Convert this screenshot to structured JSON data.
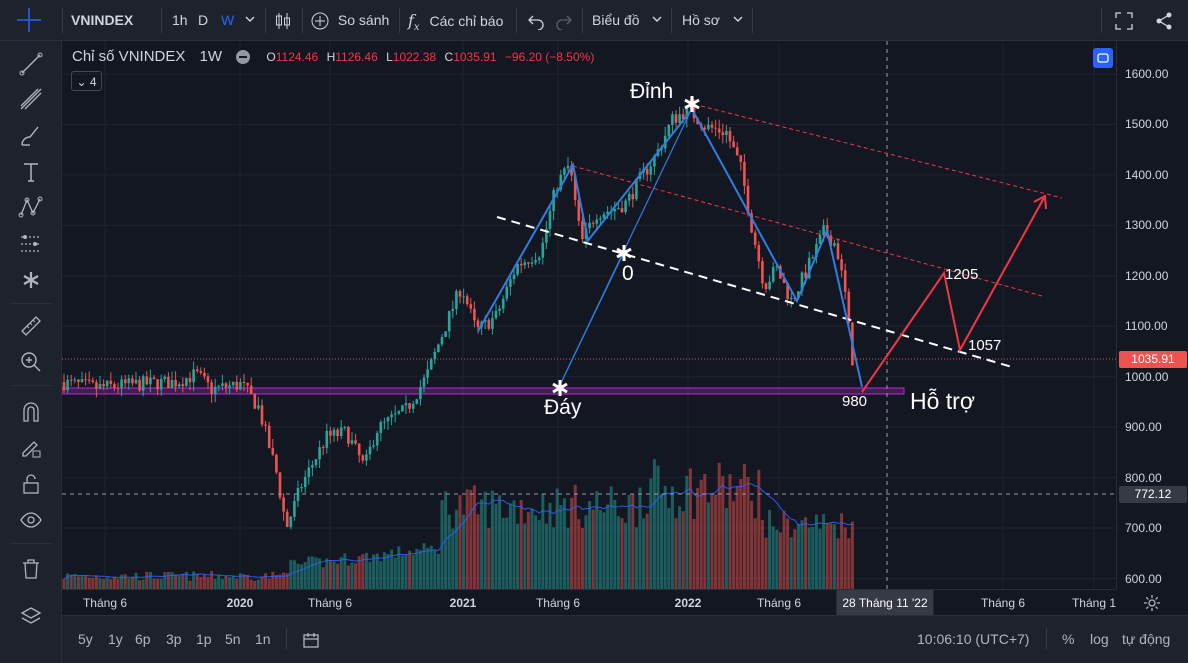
{
  "toolbar": {
    "symbol": "VNINDEX",
    "intervals": [
      "1h",
      "D",
      "W"
    ],
    "active_interval": "W",
    "compare_label": "So sánh",
    "indicators_label": "Các chỉ báo",
    "chart_type_label": "Biểu đồ",
    "profile_label": "Hồ sơ"
  },
  "legend": {
    "title": "Chỉ số VNINDEX",
    "interval": "1W",
    "open_label": "O",
    "open": "1124.46",
    "high_label": "H",
    "high": "1126.46",
    "low_label": "L",
    "low": "1022.38",
    "close_label": "C",
    "close": "1035.91",
    "change": "−96.20 (−8.50%)",
    "indicator_count": "4"
  },
  "annotations": {
    "peak": "Đỉnh",
    "bottom": "Đáy",
    "zero": "0",
    "support": "Hỗ trợ",
    "level_980": "980",
    "level_1057": "1057",
    "level_1205": "1205"
  },
  "price_axis": {
    "ticks": [
      "1600.00",
      "1500.00",
      "1400.00",
      "1300.00",
      "1200.00",
      "1100.00",
      "1000.00",
      "900.00",
      "800.00",
      "700.00",
      "600.00"
    ],
    "last_price_tag": "1035.91",
    "crosshair_price_tag": "772.12"
  },
  "time_axis": {
    "labels": [
      "Tháng 6",
      "2020",
      "Tháng 6",
      "2021",
      "Tháng 6",
      "2022",
      "Tháng 6",
      "Tháng 6",
      "Tháng 1"
    ],
    "crosshair_label": "28 Tháng 11 '22"
  },
  "bottom": {
    "ranges": [
      "5y",
      "1y",
      "6p",
      "3p",
      "1p",
      "5n",
      "1n"
    ],
    "clock": "10:06:10 (UTC+7)",
    "percent_label": "%",
    "log_label": "log",
    "auto_label": "tự động"
  },
  "colors": {
    "up": "#26a69a",
    "down": "#ef5350",
    "wave": "#2f7fe0",
    "trend_up": "#f23645",
    "support_zone": "#9c27b0",
    "background": "#131722"
  },
  "chart_data": {
    "type": "candlestick",
    "title": "Chỉ số VNINDEX",
    "interval": "1W",
    "ylim": [
      600,
      1600
    ],
    "support_level": 980,
    "wave_points": [
      {
        "label": "",
        "price": 1090
      },
      {
        "label": "",
        "price": 1420
      },
      {
        "label": "",
        "price": 1270
      },
      {
        "label": "Đỉnh",
        "price": 1530
      },
      {
        "label": "",
        "price": 1150
      },
      {
        "label": "",
        "price": 1290
      },
      {
        "label": "980",
        "price": 980
      }
    ],
    "projection": [
      980,
      1205,
      1057,
      1350
    ]
  }
}
